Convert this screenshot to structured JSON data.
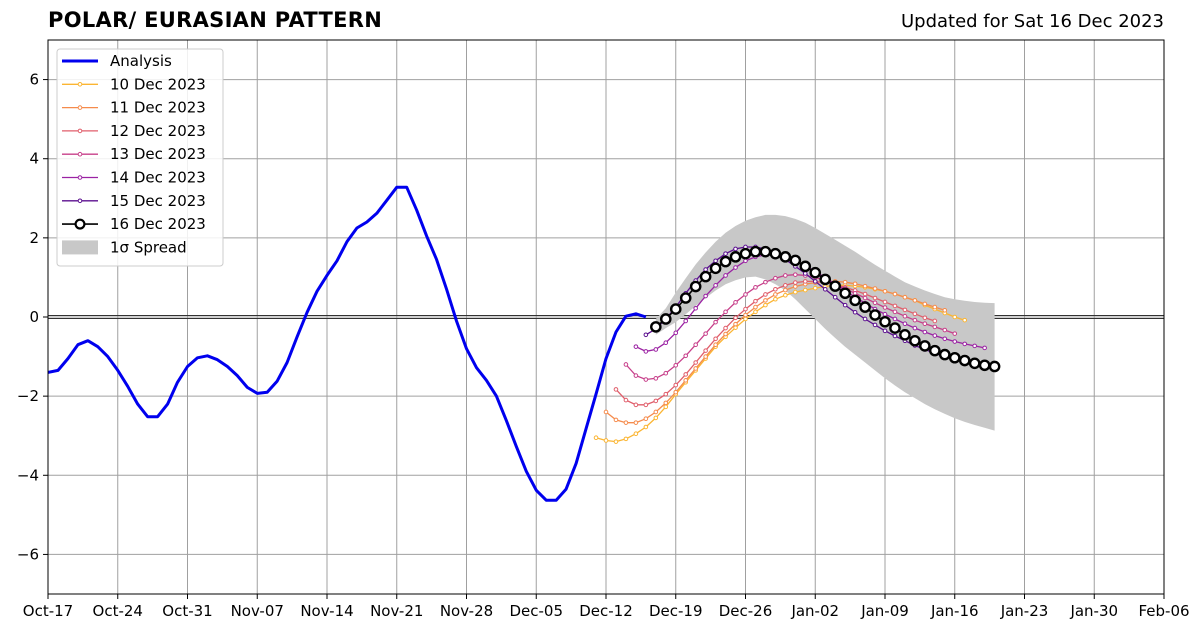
{
  "header": {
    "title": "POLAR/ EURASIAN  PATTERN",
    "updated": "Updated for Sat 16 Dec 2023"
  },
  "chart_data": {
    "type": "line",
    "title": "POLAR/ EURASIAN  PATTERN",
    "xlabel": "",
    "ylabel": "",
    "x_axis": {
      "type": "date",
      "range": [
        "2023-10-17",
        "2024-02-06"
      ],
      "ticks": [
        "2023-10-17",
        "2023-10-24",
        "2023-10-31",
        "2023-11-07",
        "2023-11-14",
        "2023-11-21",
        "2023-11-28",
        "2023-12-05",
        "2023-12-12",
        "2023-12-19",
        "2023-12-26",
        "2024-01-02",
        "2024-01-09",
        "2024-01-16",
        "2024-01-23",
        "2024-01-30",
        "2024-02-06"
      ],
      "tick_labels": [
        "Oct-17",
        "Oct-24",
        "Oct-31",
        "Nov-07",
        "Nov-14",
        "Nov-21",
        "Nov-28",
        "Dec-05",
        "Dec-12",
        "Dec-19",
        "Dec-26",
        "Jan-02",
        "Jan-09",
        "Jan-16",
        "Jan-23",
        "Jan-30",
        "Feb-06"
      ]
    },
    "y_axis": {
      "range": [
        -7,
        7
      ],
      "ticks": [
        -6,
        -4,
        -2,
        0,
        2,
        4,
        6
      ],
      "tick_labels": [
        "−6",
        "−4",
        "−2",
        "0",
        "2",
        "4",
        "6"
      ]
    },
    "grid": true,
    "legend_position": "top-left",
    "legend_order": [
      "Analysis",
      "10 Dec 2023",
      "11 Dec 2023",
      "12 Dec 2023",
      "13 Dec 2023",
      "14 Dec 2023",
      "15 Dec 2023",
      "16 Dec 2023",
      "spread"
    ],
    "analysis": {
      "name": "Analysis",
      "color": "#0000ee",
      "start_date": "2023-10-17",
      "values": [
        -1.4,
        -1.35,
        -1.05,
        -0.7,
        -0.6,
        -0.75,
        -1.0,
        -1.35,
        -1.75,
        -2.2,
        -2.52,
        -2.52,
        -2.2,
        -1.65,
        -1.25,
        -1.03,
        -0.98,
        -1.08,
        -1.25,
        -1.48,
        -1.78,
        -1.93,
        -1.9,
        -1.62,
        -1.15,
        -0.5,
        0.12,
        0.65,
        1.05,
        1.42,
        1.9,
        2.25,
        2.4,
        2.62,
        2.95,
        3.28,
        3.28,
        2.7,
        2.05,
        1.45,
        0.7,
        -0.1,
        -0.8,
        -1.28,
        -1.6,
        -2.0,
        -2.62,
        -3.27,
        -3.9,
        -4.38,
        -4.63,
        -4.63,
        -4.35,
        -3.7,
        -2.82,
        -1.95,
        -1.05,
        -0.38,
        0.02,
        0.08,
        0.0
      ]
    },
    "forecasts": [
      {
        "name": "10 Dec 2023",
        "color": "#fbb532",
        "start_date": "2023-12-11",
        "values": [
          -3.05,
          -3.12,
          -3.15,
          -3.08,
          -2.95,
          -2.78,
          -2.55,
          -2.27,
          -1.95,
          -1.65,
          -1.35,
          -1.05,
          -0.75,
          -0.5,
          -0.27,
          -0.05,
          0.13,
          0.3,
          0.45,
          0.55,
          0.63,
          0.68,
          0.73,
          0.77,
          0.8,
          0.8,
          0.78,
          0.75,
          0.7,
          0.65,
          0.58,
          0.5,
          0.42,
          0.3,
          0.2,
          0.1,
          0.0,
          -0.08
        ]
      },
      {
        "name": "11 Dec 2023",
        "color": "#f58b4c",
        "start_date": "2023-12-12",
        "values": [
          -2.4,
          -2.6,
          -2.67,
          -2.67,
          -2.57,
          -2.4,
          -2.17,
          -1.9,
          -1.6,
          -1.3,
          -1.0,
          -0.7,
          -0.43,
          -0.18,
          0.05,
          0.25,
          0.42,
          0.57,
          0.68,
          0.77,
          0.83,
          0.87,
          0.9,
          0.9,
          0.88,
          0.84,
          0.78,
          0.72,
          0.65,
          0.58,
          0.5,
          0.42,
          0.33,
          0.25,
          0.17
        ]
      },
      {
        "name": "12 Dec 2023",
        "color": "#e05e6b",
        "start_date": "2023-12-13",
        "values": [
          -1.83,
          -2.1,
          -2.22,
          -2.22,
          -2.12,
          -1.95,
          -1.72,
          -1.45,
          -1.15,
          -0.85,
          -0.55,
          -0.28,
          -0.02,
          0.2,
          0.4,
          0.57,
          0.7,
          0.8,
          0.87,
          0.9,
          0.9,
          0.87,
          0.82,
          0.75,
          0.67,
          0.58,
          0.48,
          0.38,
          0.28,
          0.18,
          0.08,
          -0.02,
          -0.1
        ]
      },
      {
        "name": "13 Dec 2023",
        "color": "#c73f8a",
        "start_date": "2023-12-14",
        "values": [
          -1.2,
          -1.48,
          -1.58,
          -1.55,
          -1.42,
          -1.22,
          -0.98,
          -0.7,
          -0.42,
          -0.13,
          0.13,
          0.37,
          0.57,
          0.75,
          0.88,
          0.98,
          1.05,
          1.07,
          1.05,
          1.0,
          0.92,
          0.82,
          0.72,
          0.6,
          0.48,
          0.36,
          0.24,
          0.13,
          0.02,
          -0.08,
          -0.17,
          -0.25,
          -0.33,
          -0.42
        ]
      },
      {
        "name": "14 Dec 2023",
        "color": "#9b22a3",
        "start_date": "2023-12-15",
        "values": [
          -0.75,
          -0.87,
          -0.82,
          -0.65,
          -0.4,
          -0.1,
          0.22,
          0.53,
          0.8,
          1.05,
          1.25,
          1.42,
          1.52,
          1.57,
          1.57,
          1.52,
          1.42,
          1.3,
          1.15,
          1.0,
          0.83,
          0.67,
          0.5,
          0.35,
          0.2,
          0.07,
          -0.05,
          -0.17,
          -0.28,
          -0.38,
          -0.47,
          -0.55,
          -0.62,
          -0.68,
          -0.73,
          -0.78
        ]
      },
      {
        "name": "15 Dec 2023",
        "color": "#5b0f8f",
        "start_date": "2023-12-16",
        "values": [
          -0.45,
          -0.3,
          -0.05,
          0.25,
          0.6,
          0.92,
          1.2,
          1.42,
          1.6,
          1.72,
          1.77,
          1.77,
          1.72,
          1.6,
          1.45,
          1.28,
          1.1,
          0.9,
          0.7,
          0.5,
          0.3,
          0.12,
          -0.05,
          -0.2,
          -0.35,
          -0.48,
          -0.6,
          -0.72,
          -0.82,
          -0.92,
          -1.0,
          -1.07
        ]
      },
      {
        "name": "16 Dec 2023",
        "color": "#000000",
        "marker": "open-circle",
        "start_date": "2023-12-17",
        "values": [
          -0.25,
          -0.05,
          0.2,
          0.48,
          0.77,
          1.02,
          1.23,
          1.4,
          1.52,
          1.6,
          1.65,
          1.65,
          1.6,
          1.52,
          1.43,
          1.28,
          1.12,
          0.95,
          0.78,
          0.6,
          0.42,
          0.25,
          0.05,
          -0.12,
          -0.28,
          -0.45,
          -0.6,
          -0.73,
          -0.85,
          -0.95,
          -1.03,
          -1.1,
          -1.17,
          -1.22,
          -1.25
        ]
      }
    ],
    "spread": {
      "name": "1σ Spread",
      "color": "#c8c8c8",
      "start_date": "2023-12-17",
      "upper": [
        -0.05,
        0.22,
        0.62,
        0.98,
        1.33,
        1.63,
        1.9,
        2.13,
        2.3,
        2.43,
        2.52,
        2.58,
        2.58,
        2.55,
        2.48,
        2.38,
        2.25,
        2.1,
        1.95,
        1.8,
        1.65,
        1.48,
        1.32,
        1.17,
        1.02,
        0.88,
        0.77,
        0.67,
        0.58,
        0.5,
        0.45,
        0.41,
        0.38,
        0.36,
        0.35
      ],
      "lower": [
        -0.45,
        -0.28,
        -0.13,
        0.07,
        0.28,
        0.48,
        0.67,
        0.83,
        0.93,
        1.0,
        1.02,
        0.95,
        0.83,
        0.67,
        0.45,
        0.2,
        -0.05,
        -0.3,
        -0.53,
        -0.75,
        -0.95,
        -1.15,
        -1.35,
        -1.55,
        -1.73,
        -1.9,
        -2.05,
        -2.2,
        -2.33,
        -2.45,
        -2.56,
        -2.65,
        -2.73,
        -2.8,
        -2.87
      ]
    }
  }
}
